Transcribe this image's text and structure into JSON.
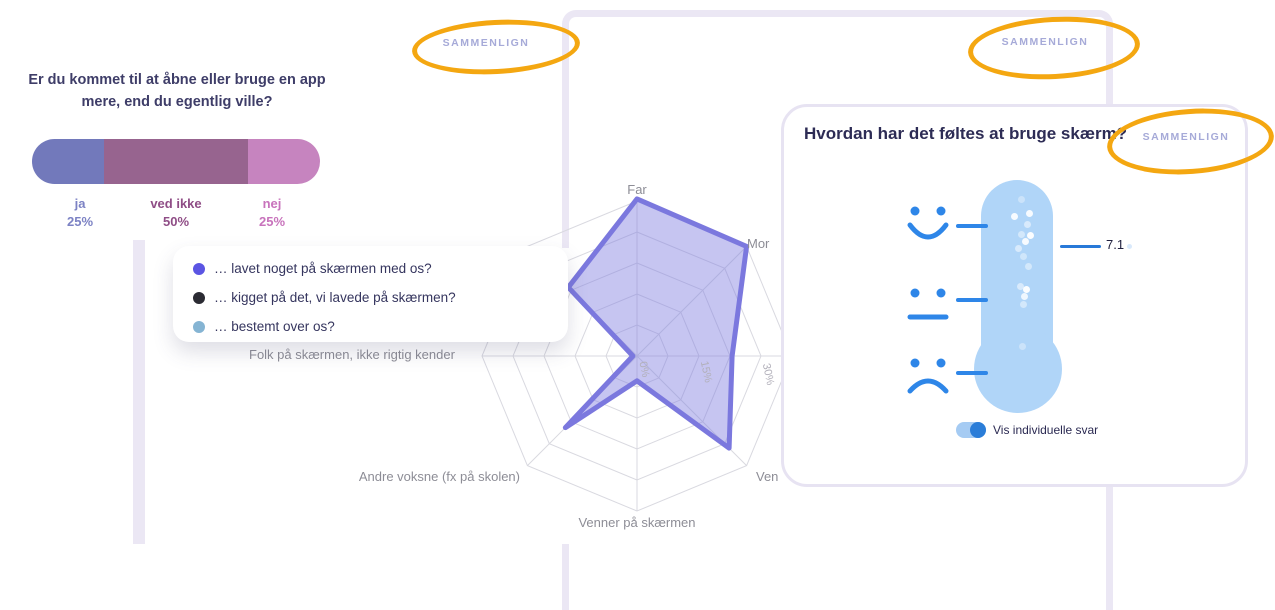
{
  "compare_button_label": "SAMMENLIGN",
  "bar_card": {
    "title": "Er du kommet til at åbne eller bruge en app mere, end du egentlig ville?",
    "title_color": "#3e3d68"
  },
  "legend": {
    "items": [
      {
        "color": "#5b55e3",
        "text": "… lavet noget på skærmen med os?"
      },
      {
        "color": "#2b2b33",
        "text": "… kigget på det, vi lavede på skærmen?"
      },
      {
        "color": "#85b4d3",
        "text": "… bestemt over os?"
      }
    ]
  },
  "radar_labels": {
    "far": "Far",
    "mor": "Mor",
    "ven": "Ven",
    "venner_paa_skaermen": "Venner på skærmen",
    "andre_voksne": "Andre voksne (fx på skolen)",
    "folk": "Folk på skærmen, ikke rigtig kender"
  },
  "feelings_card": {
    "title": "Hvordan har det føltes at bruge skærm?",
    "score_label": "7.1",
    "toggle_label": "Vis individuelle svar",
    "toggle_state": "on",
    "accent_blue": "#2e86e8",
    "thermo_fill": "#b0d5f8",
    "bubbles": [
      [
        234,
        89,
        0.35
      ],
      [
        227,
        106,
        0.9
      ],
      [
        242,
        103,
        0.9
      ],
      [
        240,
        114,
        0.5
      ],
      [
        234,
        124,
        0.45
      ],
      [
        243,
        125,
        0.95
      ],
      [
        238,
        131,
        0.9
      ],
      [
        231,
        138,
        0.5
      ],
      [
        236,
        146,
        0.4
      ],
      [
        241,
        156,
        0.45
      ],
      [
        233,
        176,
        0.5
      ],
      [
        239,
        179,
        0.95
      ],
      [
        237,
        186,
        0.8
      ],
      [
        236,
        194,
        0.45
      ],
      [
        235,
        236,
        0.35
      ]
    ]
  },
  "chart_data": [
    {
      "type": "bar",
      "variant": "horizontal-stacked-pill",
      "title": "Er du kommet til at åbne eller bruge en app mere, end du egentlig ville?",
      "categories": [
        "ja",
        "ved ikke",
        "nej"
      ],
      "values": [
        25,
        50,
        25
      ],
      "unit": "%",
      "value_labels": [
        "25%",
        "50%",
        "25%"
      ],
      "segment_colors": [
        "#7279bb",
        "#97648f",
        "#c684bf"
      ],
      "label_colors": [
        "#7c82c4",
        "#8f4d86",
        "#c873bc"
      ]
    },
    {
      "type": "radar",
      "axes": [
        "Far",
        "Mor",
        "",
        "Ven",
        "Venner på skærmen",
        "Andre voksne (fx på skolen)",
        "Folk på skærmen, ikke rigtig kender",
        ""
      ],
      "values": [
        38,
        37.5,
        23,
        31.5,
        6,
        24.5,
        1,
        23.5
      ],
      "axis_max": 37.5,
      "unit": "%",
      "ticks": [
        "0%",
        "15%",
        "30%"
      ],
      "tick_values": [
        0,
        15,
        30
      ],
      "rings": 5,
      "series_fill": "rgba(128,126,224,0.45)",
      "series_stroke": "#7b78de",
      "grid_color": "#d9d9e0",
      "legend_entries": [
        "… lavet noget på skærmen med os?",
        "… kigget på det, vi lavede på skærmen?",
        "… bestemt over os?"
      ]
    },
    {
      "type": "gauge",
      "variant": "thermometer-smiley",
      "title": "Hvordan har det føltes at bruge skærm?",
      "value": 7.1,
      "scale_icons": [
        "happy-face",
        "neutral-face",
        "sad-face"
      ],
      "individual_answers_shown": true
    }
  ]
}
